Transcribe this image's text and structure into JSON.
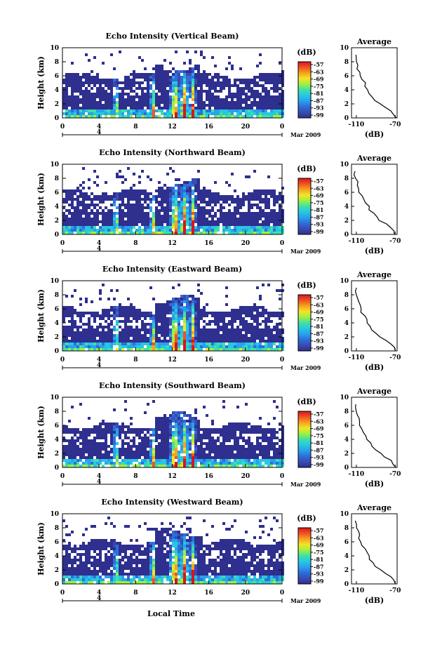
{
  "chart_data": {
    "type": "heatmap",
    "date_label": "Mar 2009",
    "day_label": "4",
    "xlabel": "Local Time",
    "ylabel": "Height (km)",
    "x_ticks": [
      "0",
      "4",
      "8",
      "12",
      "16",
      "20",
      "0"
    ],
    "xlim": [
      0,
      24
    ],
    "y_ticks": [
      "0",
      "2",
      "4",
      "6",
      "8",
      "10"
    ],
    "ylim": [
      0,
      10
    ],
    "colorbar": {
      "unit": "(dB)",
      "ticks": [
        "-57",
        "-63",
        "-69",
        "-75",
        "-81",
        "-87",
        "-93",
        "-99"
      ],
      "colors": [
        "#2e2f8e",
        "#3a4bb2",
        "#2c6fd8",
        "#2aa0ee",
        "#27c7e0",
        "#3fe0a8",
        "#9ef03f",
        "#f2e52a",
        "#f7a21f",
        "#f05322",
        "#d9141f"
      ]
    },
    "average_panel": {
      "title": "Average",
      "xlabel": "(dB)",
      "x_ticks": [
        "-110",
        "-70"
      ],
      "xlim": [
        -115,
        -68
      ],
      "y_ticks": [
        "0",
        "2",
        "4",
        "6",
        "8",
        "10"
      ],
      "ylim": [
        0,
        10
      ],
      "profile": [
        [
          -70,
          0
        ],
        [
          -72,
          0.5
        ],
        [
          -75,
          1
        ],
        [
          -80,
          1.5
        ],
        [
          -86,
          2
        ],
        [
          -90,
          2.5
        ],
        [
          -93,
          3
        ],
        [
          -96,
          3.5
        ],
        [
          -98,
          4
        ],
        [
          -100,
          4.5
        ],
        [
          -102,
          5
        ],
        [
          -104,
          5.5
        ],
        [
          -106,
          6
        ],
        [
          -107,
          6.5
        ],
        [
          -108,
          7
        ],
        [
          -109,
          7.5
        ],
        [
          -110,
          8
        ],
        [
          -111,
          8.5
        ],
        [
          -111,
          9
        ]
      ]
    },
    "panels": [
      {
        "title": "Echo Intensity (Vertical Beam)"
      },
      {
        "title": "Echo Intensity (Northward Beam)"
      },
      {
        "title": "Echo Intensity (Eastward Beam)"
      },
      {
        "title": "Echo Intensity (Southward Beam)"
      },
      {
        "title": "Echo Intensity (Westward Beam)"
      }
    ]
  }
}
